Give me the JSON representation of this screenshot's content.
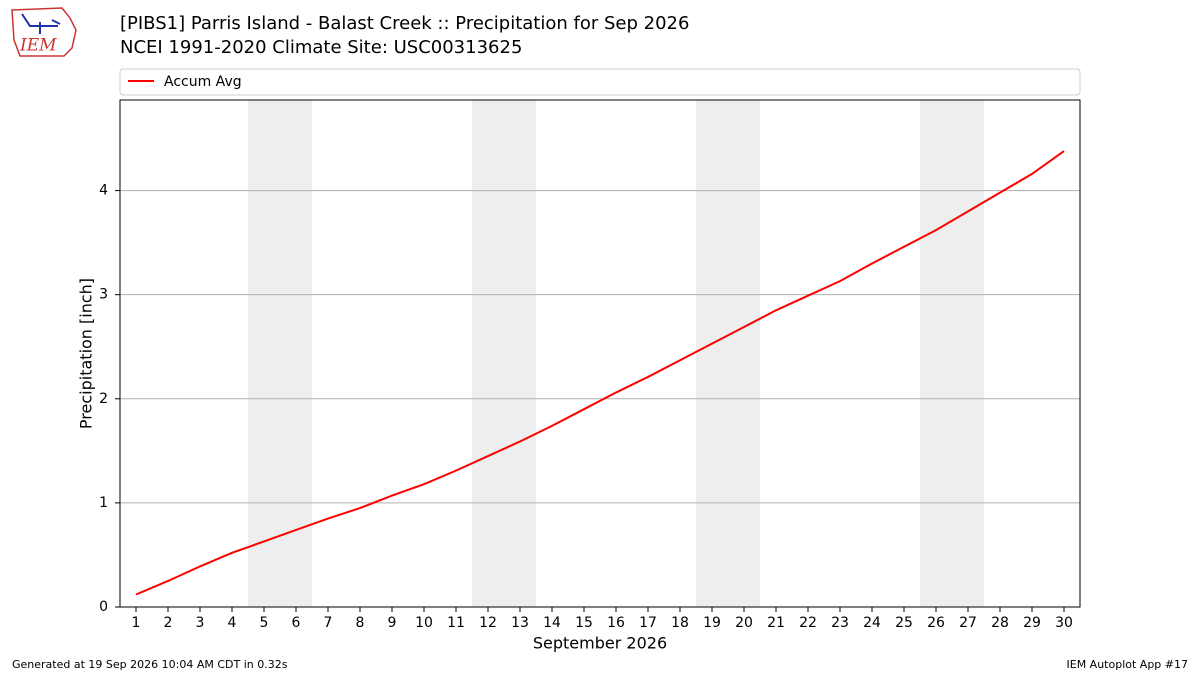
{
  "logo": "IEM",
  "footer": {
    "left": "Generated at 19 Sep 2026 10:04 AM CDT in 0.32s",
    "right": "IEM Autoplot App #17"
  },
  "chart_data": {
    "type": "line",
    "title": [
      "[PIBS1] Parris Island - Balast Creek :: Precipitation for Sep 2026",
      "NCEI 1991-2020 Climate Site: USC00313625"
    ],
    "x_label": "September 2026",
    "y_label": "Precipitation [inch]",
    "x": [
      1,
      2,
      3,
      4,
      5,
      6,
      7,
      8,
      9,
      10,
      11,
      12,
      13,
      14,
      15,
      16,
      17,
      18,
      19,
      20,
      21,
      22,
      23,
      24,
      25,
      26,
      27,
      28,
      29,
      30
    ],
    "series": [
      {
        "name": "Accum Avg",
        "color": "#ff0000",
        "values": [
          0.12,
          0.25,
          0.39,
          0.52,
          0.63,
          0.74,
          0.85,
          0.95,
          1.07,
          1.18,
          1.31,
          1.45,
          1.59,
          1.74,
          1.9,
          2.06,
          2.21,
          2.37,
          2.53,
          2.69,
          2.85,
          2.99,
          3.13,
          3.3,
          3.46,
          3.62,
          3.8,
          3.98,
          4.16,
          4.38
        ]
      }
    ],
    "xlim": [
      0.5,
      30.5
    ],
    "xticks": [
      1,
      2,
      3,
      4,
      5,
      6,
      7,
      8,
      9,
      10,
      11,
      12,
      13,
      14,
      15,
      16,
      17,
      18,
      19,
      20,
      21,
      22,
      23,
      24,
      25,
      26,
      27,
      28,
      29,
      30
    ],
    "ylim": [
      0,
      4.87
    ],
    "yticks": [
      0,
      1,
      2,
      3,
      4
    ],
    "grid": true,
    "shaded_spans": [
      [
        4.5,
        6.5
      ],
      [
        11.5,
        13.5
      ],
      [
        18.5,
        20.5
      ],
      [
        25.5,
        27.5
      ]
    ],
    "shade_color": "#eeeeee",
    "legend": "top"
  }
}
